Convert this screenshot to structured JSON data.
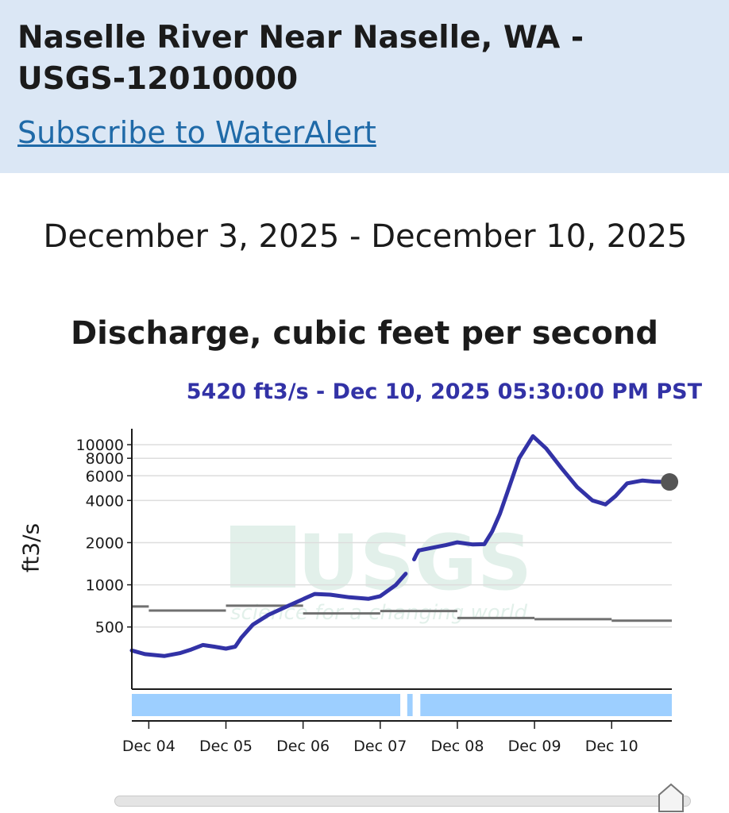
{
  "header": {
    "title": "Naselle River Near Naselle, WA - USGS-12010000",
    "subscribe_link": "Subscribe to WaterAlert"
  },
  "graph": {
    "date_range": "December 3, 2025 - December 10, 2025",
    "parameter": "Discharge, cubic feet per second",
    "tooltip": "5420 ft3/s - Dec 10, 2025 05:30:00 PM PST",
    "y_axis_label": "ft3/s",
    "watermark": "USGS science for a changing world"
  },
  "colors": {
    "header_bg": "#dbe7f5",
    "series": "#3232a6",
    "median": "#707070",
    "availability": "#9dcfff",
    "link": "#1f6aa8"
  },
  "chart_data": {
    "type": "line",
    "scale": "log",
    "title": "Discharge, cubic feet per second",
    "ylabel": "ft3/s",
    "xlabel": "",
    "x_unit": "day (Dec 2025)",
    "xlim": [
      3.78,
      10.78
    ],
    "ylim": [
      180,
      13000
    ],
    "x_ticks": [
      {
        "x": 4,
        "label": "Dec 04"
      },
      {
        "x": 5,
        "label": "Dec 05"
      },
      {
        "x": 6,
        "label": "Dec 06"
      },
      {
        "x": 7,
        "label": "Dec 07"
      },
      {
        "x": 8,
        "label": "Dec 08"
      },
      {
        "x": 9,
        "label": "Dec 09"
      },
      {
        "x": 10,
        "label": "Dec 10"
      }
    ],
    "y_ticks": [
      {
        "y": 10000,
        "label": "10000"
      },
      {
        "y": 8000,
        "label": "8000"
      },
      {
        "y": 6000,
        "label": "6000"
      },
      {
        "y": 4000,
        "label": "4000"
      },
      {
        "y": 2000,
        "label": "2000"
      },
      {
        "y": 1000,
        "label": "1000"
      },
      {
        "y": 500,
        "label": "500"
      }
    ],
    "grid": true,
    "series": [
      {
        "id": "discharge",
        "segments": [
          [
            [
              3.78,
              340
            ],
            [
              3.95,
              320
            ],
            [
              4.2,
              310
            ],
            [
              4.4,
              325
            ],
            [
              4.55,
              345
            ],
            [
              4.7,
              372
            ],
            [
              4.85,
              362
            ],
            [
              5.0,
              350
            ],
            [
              5.12,
              362
            ],
            [
              5.2,
              420
            ],
            [
              5.35,
              520
            ],
            [
              5.55,
              610
            ],
            [
              5.8,
              705
            ],
            [
              6.0,
              790
            ],
            [
              6.15,
              860
            ],
            [
              6.35,
              850
            ],
            [
              6.6,
              815
            ],
            [
              6.85,
              795
            ],
            [
              7.0,
              830
            ],
            [
              7.2,
              995
            ],
            [
              7.33,
              1200
            ]
          ],
          [
            [
              7.44,
              1520
            ],
            [
              7.47,
              1650
            ],
            [
              7.5,
              1760
            ]
          ],
          [
            [
              7.5,
              1760
            ],
            [
              7.7,
              1850
            ],
            [
              7.85,
              1920
            ],
            [
              8.0,
              2010
            ],
            [
              8.2,
              1940
            ],
            [
              8.35,
              1950
            ],
            [
              8.45,
              2400
            ],
            [
              8.55,
              3200
            ],
            [
              8.65,
              4600
            ],
            [
              8.8,
              8000
            ],
            [
              8.98,
              11500
            ],
            [
              9.15,
              9400
            ],
            [
              9.35,
              6800
            ],
            [
              9.55,
              5000
            ],
            [
              9.75,
              4000
            ],
            [
              9.92,
              3750
            ],
            [
              10.05,
              4300
            ],
            [
              10.2,
              5300
            ],
            [
              10.4,
              5550
            ],
            [
              10.55,
              5450
            ],
            [
              10.68,
              5420
            ]
          ]
        ]
      }
    ],
    "median_steps": [
      {
        "x0": 3.78,
        "x1": 4.0,
        "y": 700
      },
      {
        "x0": 4.0,
        "x1": 5.0,
        "y": 655
      },
      {
        "x0": 5.0,
        "x1": 6.0,
        "y": 710
      },
      {
        "x0": 6.0,
        "x1": 7.0,
        "y": 625
      },
      {
        "x0": 7.0,
        "x1": 8.0,
        "y": 650
      },
      {
        "x0": 8.0,
        "x1": 9.0,
        "y": 580
      },
      {
        "x0": 9.0,
        "x1": 10.0,
        "y": 568
      },
      {
        "x0": 10.0,
        "x1": 10.78,
        "y": 555
      }
    ],
    "availability": [
      {
        "x0": 3.78,
        "x1": 7.26
      },
      {
        "x0": 7.35,
        "x1": 7.42
      },
      {
        "x0": 7.52,
        "x1": 10.78
      }
    ],
    "current_point": {
      "x": 10.75,
      "y": 5420
    }
  }
}
